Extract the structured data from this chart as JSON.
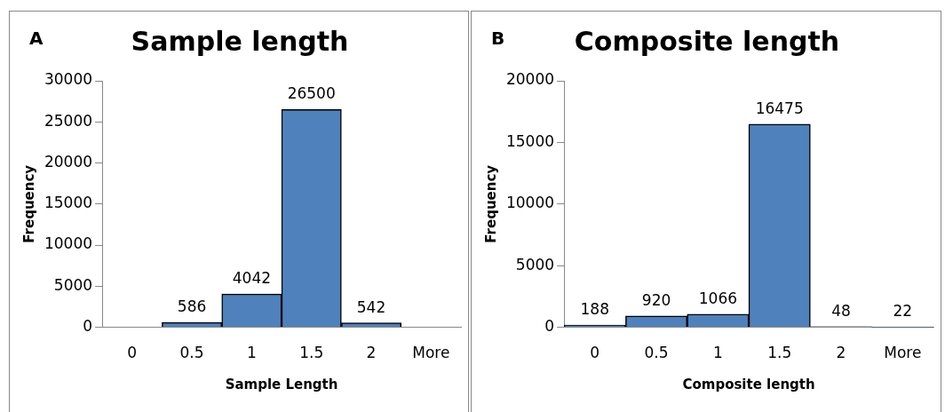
{
  "chart_data": [
    {
      "type": "bar",
      "title": "Sample length",
      "xlabel": "Sample Length",
      "ylabel": "Frequency",
      "annotations": [
        "A"
      ],
      "categories": [
        "0",
        "0.5",
        "1",
        "1.5",
        "2",
        "More"
      ],
      "values": [
        0,
        586,
        4042,
        26500,
        542,
        0
      ],
      "value_labels": [
        null,
        "586",
        "4042",
        "26500",
        "542",
        null
      ],
      "color": "#4f81bd",
      "ylim": [
        0,
        30000
      ],
      "yticks": [
        0,
        5000,
        10000,
        15000,
        20000,
        25000,
        30000
      ],
      "grid": false,
      "legend": false
    },
    {
      "type": "bar",
      "title": "Composite length",
      "xlabel": "Composite length",
      "ylabel": "Frequency",
      "annotations": [
        "B"
      ],
      "categories": [
        "0",
        "0.5",
        "1",
        "1.5",
        "2",
        "More"
      ],
      "values": [
        188,
        920,
        1066,
        16475,
        48,
        22
      ],
      "data_labels": true,
      "color": "#4f81bd",
      "ylim": [
        0,
        20000
      ],
      "yticks": [
        0,
        5000,
        10000,
        15000,
        20000
      ],
      "grid": false,
      "legend": false
    }
  ]
}
